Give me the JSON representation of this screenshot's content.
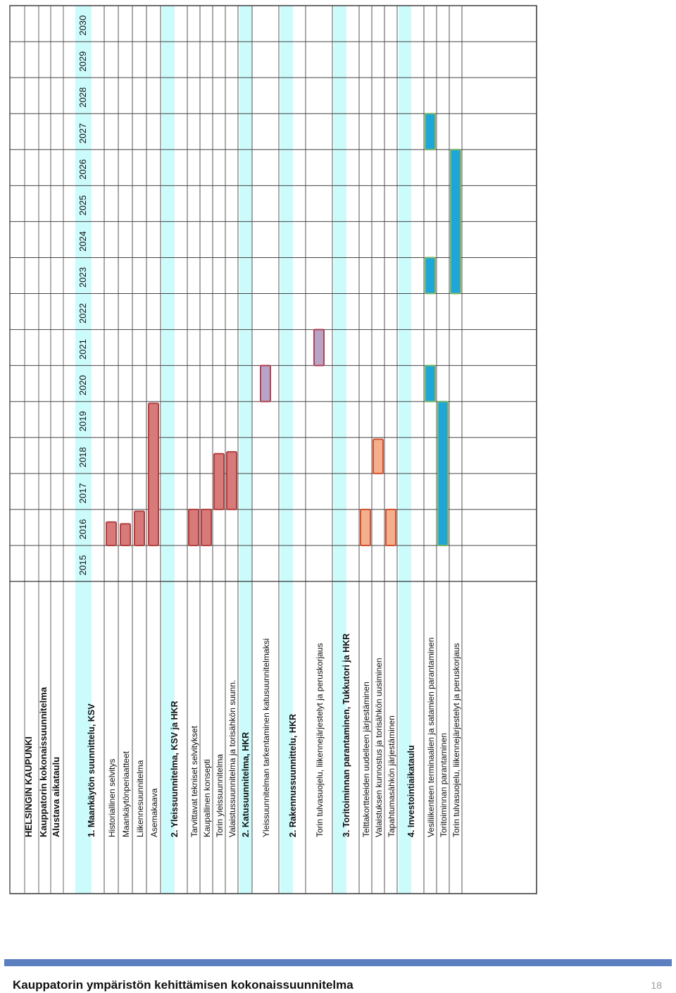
{
  "chart_data": {
    "type": "gantt",
    "orientation": "rotated-90-ccw",
    "header": {
      "org": "HELSINGIN KAUPUNKI",
      "project": "Kauppatorin kokonaissuunnitelma",
      "subtitle": "Alustava aikataulu"
    },
    "years": [
      "2015",
      "2016",
      "2017",
      "2018",
      "2019",
      "2020",
      "2021",
      "2022",
      "2023",
      "2024",
      "2025",
      "2026",
      "2027",
      "2028",
      "2029",
      "2030"
    ],
    "rows": [
      {
        "label": "1. Maankäytön suunnittelu, KSV",
        "kind": "section"
      },
      {
        "label": "Historiallinen selvitys",
        "kind": "task",
        "bars": [
          {
            "start": 2016.0,
            "end": 2016.65,
            "color": "#d97a7a"
          }
        ]
      },
      {
        "label": "Maankäytönperiaatteet",
        "kind": "task",
        "bars": [
          {
            "start": 2016.0,
            "end": 2016.6,
            "color": "#d97a7a"
          }
        ]
      },
      {
        "label": "Liikennesuunnitelma",
        "kind": "task",
        "bars": [
          {
            "start": 2016.0,
            "end": 2016.95,
            "color": "#d97a7a"
          }
        ]
      },
      {
        "label": "Asemakaava",
        "kind": "task",
        "bars": [
          {
            "start": 2016.0,
            "end": 2019.95,
            "color": "#d97a7a"
          }
        ]
      },
      {
        "label": "2. Yleissuunnitelma, KSV ja HKR",
        "kind": "section"
      },
      {
        "label": "Tarvittavat tekniset selvitykset",
        "kind": "task",
        "bars": [
          {
            "start": 2016.0,
            "end": 2017.0,
            "color": "#d97a7a"
          }
        ]
      },
      {
        "label": "Kaupallinen konsepti",
        "kind": "task",
        "bars": [
          {
            "start": 2016.0,
            "end": 2017.0,
            "color": "#d97a7a"
          }
        ]
      },
      {
        "label": "Torin yleissuunnitelma",
        "kind": "task",
        "bars": [
          {
            "start": 2017.0,
            "end": 2018.55,
            "color": "#d97a7a"
          }
        ]
      },
      {
        "label": "Valaistussuunnitelma ja torisähkön suunn.",
        "kind": "task",
        "bars": [
          {
            "start": 2017.0,
            "end": 2018.6,
            "color": "#d97a7a"
          }
        ]
      },
      {
        "label": "2. Katusuunnitelma, HKR",
        "kind": "section"
      },
      {
        "label": "Yleissuunnitelman tarkentaminen katusuunnitelmaksi",
        "kind": "task",
        "bars": [
          {
            "start": 2020.0,
            "end": 2021.0,
            "color": "#b8a4c8"
          }
        ]
      },
      {
        "label": "2. Rakennussuunnittelu, HKR",
        "kind": "section"
      },
      {
        "label": "Torin tulvasuojelu, liikennejärjestelyt ja peruskorjaus",
        "kind": "task",
        "bars": [
          {
            "start": 2021.0,
            "end": 2022.0,
            "color": "#b8a4c8"
          }
        ]
      },
      {
        "label": "3. Toritoiminnan parantaminen, Tukkutori ja HKR",
        "kind": "section"
      },
      {
        "label": "Telttakortteleiden uudelleen järjestäminen",
        "kind": "task",
        "bars": [
          {
            "start": 2016.0,
            "end": 2017.0,
            "color": "#f4b08c"
          }
        ]
      },
      {
        "label": "Valaistuksen kunnostus ja torisähkön uusiminen",
        "kind": "task",
        "bars": [
          {
            "start": 2018.0,
            "end": 2018.95,
            "color": "#f4b08c"
          }
        ]
      },
      {
        "label": "Tapahtumasähkön järjestäminen",
        "kind": "task",
        "bars": [
          {
            "start": 2016.0,
            "end": 2017.0,
            "color": "#f4b08c"
          }
        ]
      },
      {
        "label": "4. Investointiaikataulu",
        "kind": "section"
      },
      {
        "label": "Vesiliikenteen terminaalien ja satamien parantaminen",
        "kind": "task",
        "bars": [
          {
            "start": 2020.0,
            "end": 2021.0,
            "color": "#1fa6d8"
          },
          {
            "start": 2023.0,
            "end": 2024.0,
            "color": "#1fa6d8"
          },
          {
            "start": 2027.0,
            "end": 2028.0,
            "color": "#1fa6d8"
          }
        ]
      },
      {
        "label": "Toritoiminnan parantaminen",
        "kind": "task",
        "bars": [
          {
            "start": 2016.0,
            "end": 2020.0,
            "color": "#1fa6d8"
          }
        ]
      },
      {
        "label": "Torin tulvasuojelu, liikennejärjestelyt ja peruskorjaus",
        "kind": "task",
        "bars": [
          {
            "start": 2023.0,
            "end": 2027.0,
            "color": "#1fa6d8"
          }
        ]
      }
    ],
    "colors": {
      "section_band": "#ccfbfb",
      "grid": "#333333",
      "bar_border_red": "#b34040",
      "bar_border_purple": "#b34050",
      "bar_border_orange": "#d25030",
      "bar_border_blue": "#77b56a"
    }
  },
  "footer": {
    "title": "Kauppatorin ympäristön kehittämisen kokonaissuunnitelma",
    "page": "18"
  }
}
